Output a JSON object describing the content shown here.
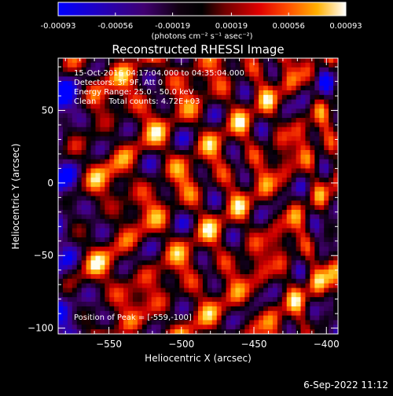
{
  "colorbar": {
    "tick_labels": [
      "-0.00093",
      "-0.00056",
      "-0.00019",
      "0.00019",
      "0.00056",
      "0.00093"
    ],
    "units_label": "(photons cm⁻² s⁻¹ asec⁻²)",
    "range": [
      -0.00093,
      0.00093
    ]
  },
  "title": "Reconstructed RHESSI Image",
  "info_lines": [
    "15-Oct-2016 04:17:04.000 to 04:35:04.000",
    "Detectors: 3F 9F, Att 0",
    "Energy Range: 25.0 - 50.0 keV",
    "Clean     Total counts: 4.72E+03"
  ],
  "peak_label": "Position of Peak = [-559,-100]",
  "axes": {
    "xlabel": "Heliocentric X (arcsec)",
    "ylabel": "Heliocentric Y (arcsec)",
    "xlim": [
      -585,
      -392
    ],
    "ylim": [
      -104,
      86
    ],
    "x_ticks": [
      -550,
      -500,
      -450,
      -400
    ],
    "y_ticks": [
      -100,
      -50,
      0,
      50
    ],
    "x_tick_labels": [
      "−550",
      "−500",
      "−450",
      "−400"
    ],
    "y_tick_labels": [
      "−100",
      "−50",
      "0",
      "50"
    ]
  },
  "timestamp": "6-Sep-2022 11:12",
  "colors": {
    "background": "#000000",
    "colormap": [
      "#0000ff",
      "#400080",
      "#000000",
      "#600000",
      "#c00000",
      "#ff4000",
      "#ff9000",
      "#ffd000",
      "#ffffff"
    ]
  }
}
